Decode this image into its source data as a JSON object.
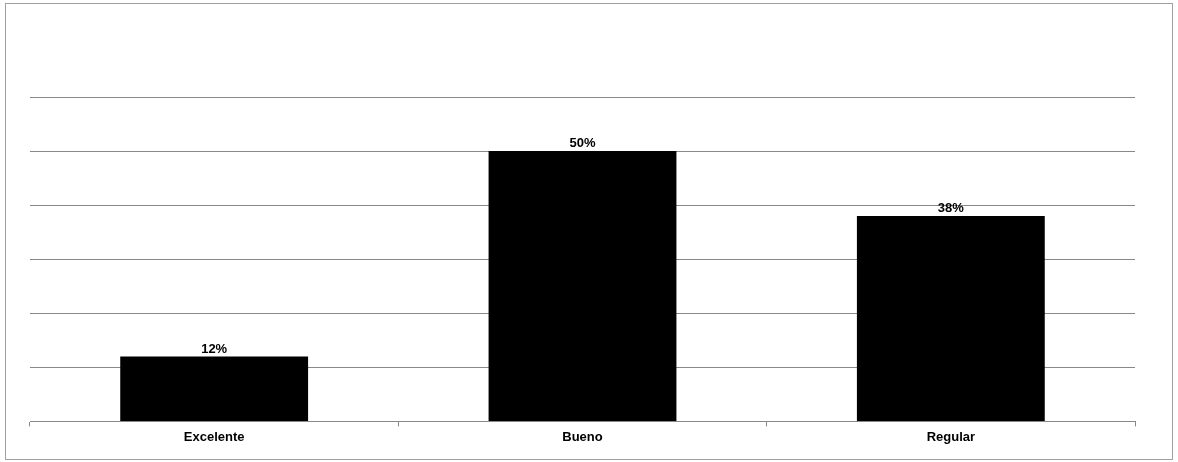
{
  "chart_data": {
    "type": "bar",
    "categories": [
      "Excelente",
      "Bueno",
      "Regular"
    ],
    "values": [
      12,
      50,
      38
    ],
    "color": "#000000",
    "value_labels": [
      "12%",
      "50%",
      "38%"
    ],
    "grid": "y",
    "tick_labels": "x",
    "legend": false
  }
}
